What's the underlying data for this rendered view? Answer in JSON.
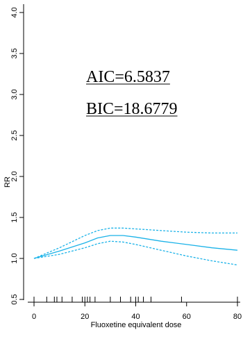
{
  "chart_data": {
    "type": "line",
    "title": "",
    "xlabel": "Fluoxetine equivalent dose",
    "ylabel": "RR",
    "xlim": [
      0,
      80
    ],
    "ylim": [
      0.5,
      4.0
    ],
    "x_ticks": [
      0,
      20,
      40,
      60,
      80
    ],
    "x_tick_labels": [
      "0",
      "20",
      "40",
      "60",
      "80"
    ],
    "y_ticks": [
      0.5,
      1.0,
      1.5,
      2.0,
      2.5,
      3.0,
      3.5,
      4.0
    ],
    "y_tick_labels": [
      "0.5",
      "1.0",
      "1.5",
      "2.0",
      "2.5",
      "3.0",
      "3.5",
      "4.0"
    ],
    "grid": false,
    "line_color": "#1ab2e8",
    "series": [
      {
        "role": "estimate",
        "style": "solid",
        "x": [
          0,
          10,
          20,
          25,
          30,
          35,
          40,
          50,
          60,
          70,
          80
        ],
        "y": [
          1.0,
          1.09,
          1.19,
          1.25,
          1.28,
          1.28,
          1.26,
          1.21,
          1.17,
          1.13,
          1.1
        ]
      },
      {
        "role": "upper-ci",
        "style": "dashed",
        "x": [
          0,
          10,
          20,
          25,
          30,
          35,
          40,
          50,
          60,
          70,
          80
        ],
        "y": [
          1.0,
          1.13,
          1.28,
          1.34,
          1.37,
          1.37,
          1.36,
          1.34,
          1.32,
          1.31,
          1.31
        ]
      },
      {
        "role": "lower-ci",
        "style": "dashed",
        "x": [
          0,
          10,
          20,
          25,
          30,
          35,
          40,
          50,
          60,
          70,
          80
        ],
        "y": [
          1.0,
          1.05,
          1.13,
          1.18,
          1.21,
          1.2,
          1.17,
          1.1,
          1.03,
          0.97,
          0.92
        ]
      }
    ],
    "rug_x": [
      0,
      5,
      8,
      9,
      11,
      15,
      19,
      20,
      21,
      22,
      24,
      30,
      34,
      38,
      40,
      41,
      43,
      46,
      58,
      80
    ],
    "annotations": {
      "aic": "AIC=6.5837",
      "bic": "BIC=18.6779"
    }
  }
}
